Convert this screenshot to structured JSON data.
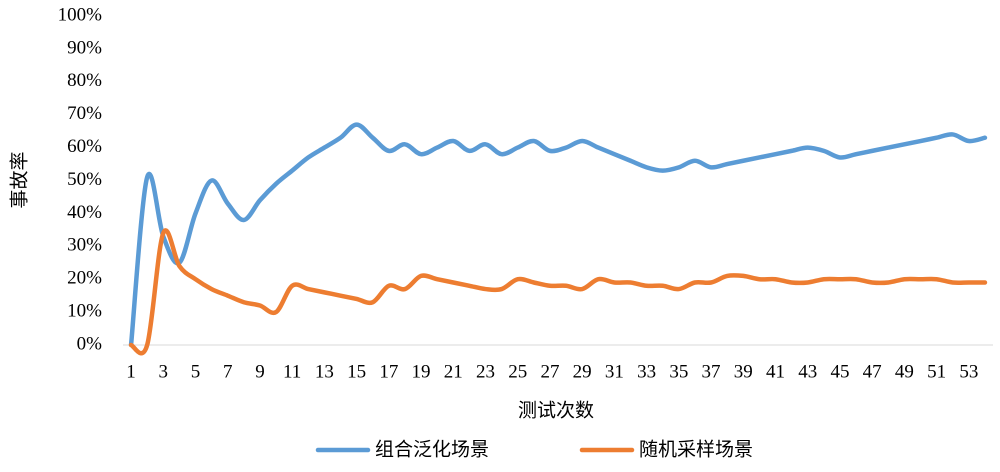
{
  "chart_data": {
    "type": "line",
    "ylabel": "事故率",
    "xlabel": "测试次数",
    "categories": [
      1,
      null,
      3,
      null,
      5,
      null,
      7,
      null,
      9,
      null,
      11,
      null,
      13,
      null,
      15,
      null,
      17,
      null,
      19,
      null,
      21,
      null,
      23,
      null,
      25,
      null,
      27,
      null,
      29,
      null,
      31,
      null,
      33,
      null,
      35,
      null,
      37,
      null,
      39,
      null,
      41,
      null,
      43,
      null,
      45,
      null,
      47,
      null,
      49,
      null,
      51,
      null,
      53,
      null
    ],
    "series": [
      {
        "name": "组合泛化场景",
        "color": "#5b9bd5",
        "values": [
          0,
          51,
          33,
          25,
          40,
          50,
          43,
          38,
          44,
          49,
          53,
          57,
          60,
          63,
          67,
          63,
          59,
          61,
          58,
          60,
          62,
          59,
          61,
          58,
          60,
          62,
          59,
          60,
          62,
          60,
          58,
          56,
          54,
          53,
          54,
          56,
          54,
          55,
          56,
          57,
          58,
          59,
          60,
          59,
          57,
          58,
          59,
          60,
          61,
          62,
          63,
          64,
          62,
          63
        ]
      },
      {
        "name": "随机采样场景",
        "color": "#ed7d31",
        "values": [
          0,
          0,
          34,
          24,
          20,
          17,
          15,
          13,
          12,
          10,
          18,
          17,
          16,
          15,
          14,
          13,
          18,
          17,
          21,
          20,
          19,
          18,
          17,
          17,
          20,
          19,
          18,
          18,
          17,
          20,
          19,
          19,
          18,
          18,
          17,
          19,
          19,
          21,
          21,
          20,
          20,
          19,
          19,
          20,
          20,
          20,
          19,
          19,
          20,
          20,
          20,
          19,
          19,
          19
        ]
      }
    ],
    "ylim": [
      0,
      100
    ],
    "yticks": [
      {
        "value": 0,
        "label": "0%"
      },
      {
        "value": 10,
        "label": "10%"
      },
      {
        "value": 20,
        "label": "20%"
      },
      {
        "value": 30,
        "label": "30%"
      },
      {
        "value": 40,
        "label": "40%"
      },
      {
        "value": 50,
        "label": "50%"
      },
      {
        "value": 60,
        "label": "60%"
      },
      {
        "value": 70,
        "label": "70%"
      },
      {
        "value": 80,
        "label": "80%"
      },
      {
        "value": 90,
        "label": "90%"
      },
      {
        "value": 100,
        "label": "100%"
      }
    ],
    "legend": "bottom"
  }
}
